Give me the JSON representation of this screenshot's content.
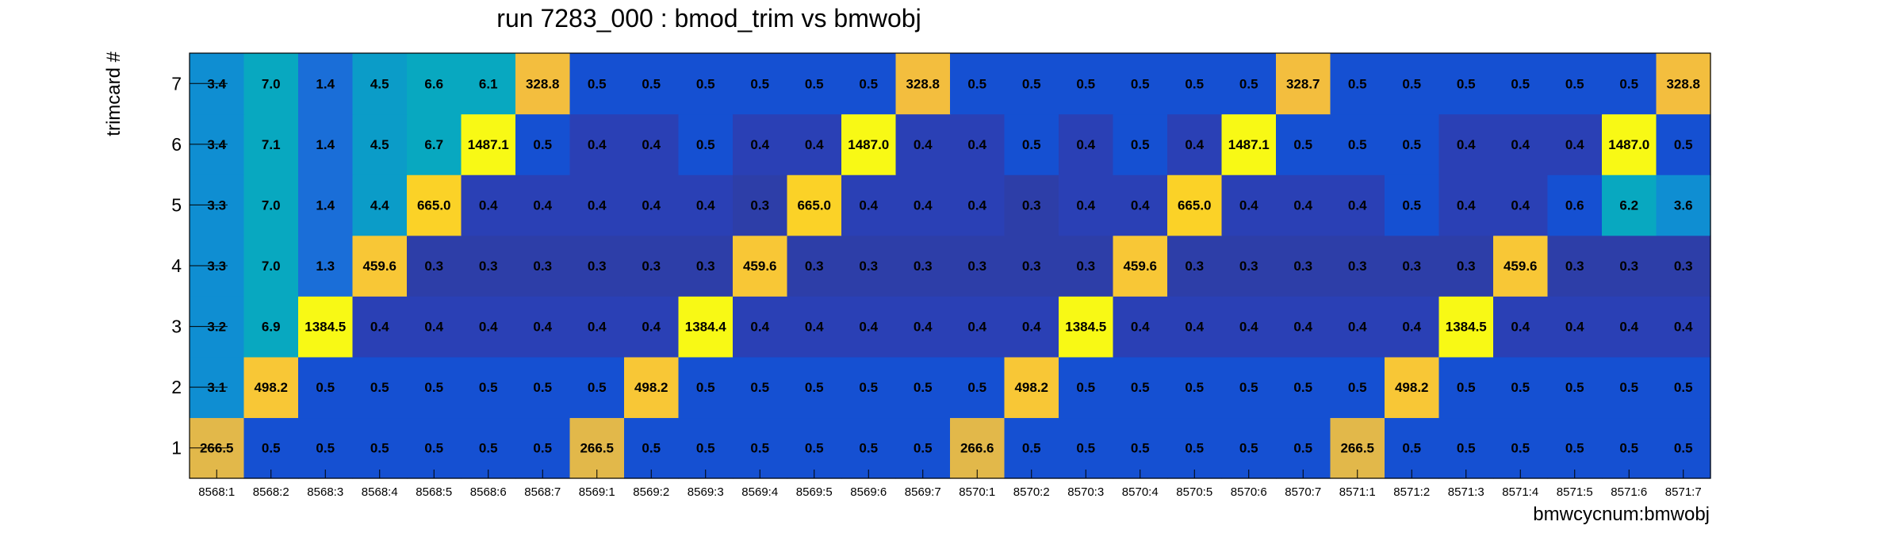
{
  "chart_data": {
    "type": "heatmap",
    "title": "run 7283_000 : bmod_trim vs bmwobj",
    "xlabel": "bmwcycnum:bmwobj",
    "ylabel": "trimcard #",
    "x_categories": [
      "8568:1",
      "8568:2",
      "8568:3",
      "8568:4",
      "8568:5",
      "8568:6",
      "8568:7",
      "8569:1",
      "8569:2",
      "8569:3",
      "8569:4",
      "8569:5",
      "8569:6",
      "8569:7",
      "8570:1",
      "8570:2",
      "8570:3",
      "8570:4",
      "8570:5",
      "8570:6",
      "8570:7",
      "8571:1",
      "8571:2",
      "8571:3",
      "8571:4",
      "8571:5",
      "8571:6",
      "8571:7"
    ],
    "y_categories": [
      "1",
      "2",
      "3",
      "4",
      "5",
      "6",
      "7"
    ],
    "values": [
      [
        "266.5",
        "0.5",
        "0.5",
        "0.5",
        "0.5",
        "0.5",
        "0.5",
        "266.5",
        "0.5",
        "0.5",
        "0.5",
        "0.5",
        "0.5",
        "0.5",
        "266.6",
        "0.5",
        "0.5",
        "0.5",
        "0.5",
        "0.5",
        "0.5",
        "266.5",
        "0.5",
        "0.5",
        "0.5",
        "0.5",
        "0.5",
        "0.5"
      ],
      [
        "3.1",
        "498.2",
        "0.5",
        "0.5",
        "0.5",
        "0.5",
        "0.5",
        "0.5",
        "498.2",
        "0.5",
        "0.5",
        "0.5",
        "0.5",
        "0.5",
        "0.5",
        "498.2",
        "0.5",
        "0.5",
        "0.5",
        "0.5",
        "0.5",
        "0.5",
        "498.2",
        "0.5",
        "0.5",
        "0.5",
        "0.5",
        "0.5"
      ],
      [
        "3.2",
        "6.9",
        "1384.5",
        "0.4",
        "0.4",
        "0.4",
        "0.4",
        "0.4",
        "0.4",
        "1384.4",
        "0.4",
        "0.4",
        "0.4",
        "0.4",
        "0.4",
        "0.4",
        "1384.5",
        "0.4",
        "0.4",
        "0.4",
        "0.4",
        "0.4",
        "0.4",
        "1384.5",
        "0.4",
        "0.4",
        "0.4",
        "0.4"
      ],
      [
        "3.3",
        "7.0",
        "1.3",
        "459.6",
        "0.3",
        "0.3",
        "0.3",
        "0.3",
        "0.3",
        "0.3",
        "459.6",
        "0.3",
        "0.3",
        "0.3",
        "0.3",
        "0.3",
        "0.3",
        "459.6",
        "0.3",
        "0.3",
        "0.3",
        "0.3",
        "0.3",
        "0.3",
        "459.6",
        "0.3",
        "0.3",
        "0.3"
      ],
      [
        "3.3",
        "7.0",
        "1.4",
        "4.4",
        "665.0",
        "0.4",
        "0.4",
        "0.4",
        "0.4",
        "0.4",
        "0.3",
        "665.0",
        "0.4",
        "0.4",
        "0.4",
        "0.3",
        "0.4",
        "0.4",
        "665.0",
        "0.4",
        "0.4",
        "0.4",
        "0.5",
        "0.4",
        "0.4",
        "0.6",
        "6.2",
        "3.6"
      ],
      [
        "3.4",
        "7.1",
        "1.4",
        "4.5",
        "6.7",
        "1487.1",
        "0.5",
        "0.4",
        "0.4",
        "0.5",
        "0.4",
        "0.4",
        "1487.0",
        "0.4",
        "0.4",
        "0.5",
        "0.4",
        "0.5",
        "0.4",
        "1487.1",
        "0.5",
        "0.5",
        "0.5",
        "0.4",
        "0.4",
        "0.4",
        "1487.0",
        "0.5"
      ],
      [
        "3.4",
        "7.0",
        "1.4",
        "4.5",
        "6.6",
        "6.1",
        "328.8",
        "0.5",
        "0.5",
        "0.5",
        "0.5",
        "0.5",
        "0.5",
        "328.8",
        "0.5",
        "0.5",
        "0.5",
        "0.5",
        "0.5",
        "0.5",
        "328.7",
        "0.5",
        "0.5",
        "0.5",
        "0.5",
        "0.5",
        "0.5",
        "328.8"
      ]
    ],
    "colors": {
      "c_0.3": "#2d3ea8",
      "c_0.4": "#2a40b5",
      "c_0.5": "#1550d2",
      "c_1": "#1a6ed8",
      "c_3": "#0f8ed2",
      "c_4": "#0b9cc8",
      "c_6": "#08a8c0",
      "c_266": "#e2b84a",
      "c_328": "#f3be3e",
      "c_459": "#f8c736",
      "c_665": "#fbd227",
      "c_1384": "#f8f915",
      "c_1487": "#f8f915"
    }
  }
}
